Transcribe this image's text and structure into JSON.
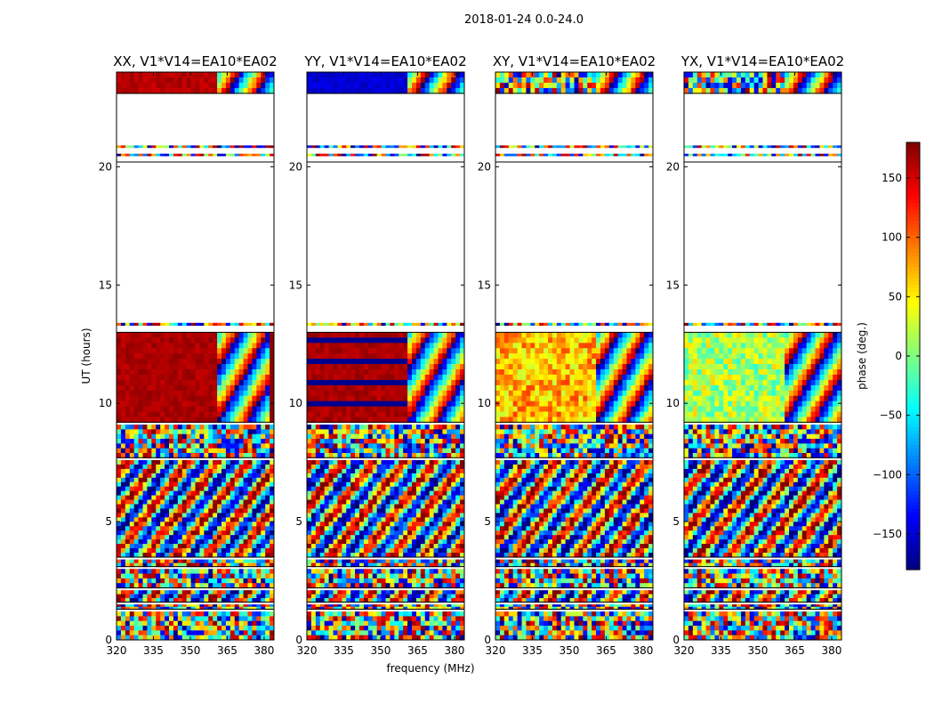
{
  "chart_data": {
    "type": "heatmap",
    "suptitle": "2018-01-24 0.0-24.0",
    "xlabel": "frequency (MHz)",
    "ylabel": "UT (hours)",
    "xlim": [
      320,
      384
    ],
    "ylim": [
      0,
      24
    ],
    "xticks": [
      320,
      335,
      350,
      365,
      380
    ],
    "yticks": [
      0,
      5,
      10,
      15,
      20
    ],
    "panels": [
      {
        "title": "XX, V1*V14=EA10*EA02",
        "pol": "XX",
        "block_phase": 165,
        "block_edge_freq": 361,
        "block_extra": "stripes",
        "top_block_phase": 160
      },
      {
        "title": "YY, V1*V14=EA10*EA02",
        "pol": "YY",
        "block_phase": 165,
        "block_edge_freq": 361,
        "block_extra": "bands",
        "top_block_phase": -150
      },
      {
        "title": "XY, V1*V14=EA10*EA02",
        "pol": "XY",
        "block_phase": 70,
        "block_edge_freq": 361,
        "block_extra": "noisy",
        "top_block_phase": 0
      },
      {
        "title": "YX, V1*V14=EA10*EA02",
        "pol": "YX",
        "block_phase": 15,
        "block_edge_freq": 361,
        "block_extra": "noisy",
        "top_block_phase": 0
      }
    ],
    "data_time_ranges_hours": [
      {
        "from": 0.0,
        "to": 1.2,
        "kind": "noise"
      },
      {
        "from": 1.3,
        "to": 1.5,
        "kind": "noise"
      },
      {
        "from": 1.6,
        "to": 2.1,
        "kind": "fringe"
      },
      {
        "from": 2.2,
        "to": 3.0,
        "kind": "noise"
      },
      {
        "from": 3.1,
        "to": 3.4,
        "kind": "noise"
      },
      {
        "from": 3.5,
        "to": 7.6,
        "kind": "fringe"
      },
      {
        "from": 7.7,
        "to": 9.1,
        "kind": "noise"
      },
      {
        "from": 9.2,
        "to": 13.0,
        "kind": "block"
      },
      {
        "from": 13.0,
        "to": 13.4,
        "kind": "sparse"
      },
      {
        "from": 20.2,
        "to": 20.9,
        "kind": "sparse"
      },
      {
        "from": 23.1,
        "to": 24.0,
        "kind": "top"
      }
    ],
    "colorbar": {
      "label": "phase (deg.)",
      "vmin": -180,
      "vmax": 180,
      "ticks": [
        -150,
        -100,
        -50,
        0,
        50,
        100,
        150
      ],
      "colormap": "jet"
    }
  }
}
